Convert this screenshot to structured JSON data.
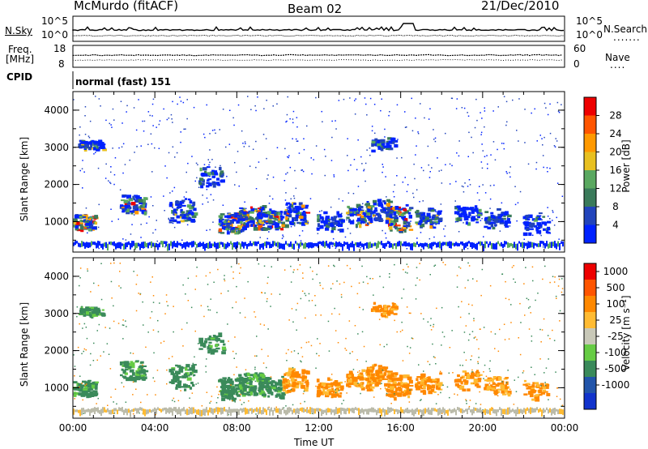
{
  "header": {
    "station": "McMurdo (fitACF)",
    "beam": "Beam 02",
    "date": "21/Dec/2010"
  },
  "noise_panel": {
    "left_label": "N.Sky",
    "right_label": "N.Search",
    "left_ticks": [
      "10^5",
      "10^0"
    ],
    "right_ticks": [
      "10^5",
      "10^0"
    ]
  },
  "freq_panel": {
    "left_label_1": "Freq.",
    "left_label_2": "[MHz]",
    "right_label": "Nave",
    "left_ticks": [
      "18",
      "8"
    ],
    "right_ticks": [
      "60",
      "0"
    ]
  },
  "cpid": {
    "label": "CPID",
    "value": "normal (fast) 151"
  },
  "colors": {
    "power_scale": [
      "#0022ff",
      "#2244bb",
      "#3a7a5a",
      "#5aa860",
      "#e8c020",
      "#ff9900",
      "#ff5500",
      "#ee0000"
    ],
    "velocity_scale": [
      "#ee0000",
      "#ff5500",
      "#ff8800",
      "#ffbb33",
      "#c8c8b8",
      "#66cc44",
      "#3a8a5a",
      "#2255aa",
      "#1133cc"
    ],
    "ground_scatter": "#bbbbaa"
  },
  "chart_data": [
    {
      "type": "heatmap",
      "title": "Power",
      "ylabel": "Slant Range [km]",
      "xlabel": "",
      "ylim": [
        180,
        4500
      ],
      "yticks": [
        "1000",
        "2000",
        "3000",
        "4000"
      ],
      "colorbar": {
        "label": "Power [dB]",
        "range": [
          0,
          32
        ],
        "ticks": [
          "4",
          "8",
          "12",
          "16",
          "20",
          "24",
          "28"
        ]
      }
    },
    {
      "type": "heatmap",
      "title": "Velocity",
      "ylabel": "Slant Range [km]",
      "xlabel": "Time UT",
      "ylim": [
        180,
        4500
      ],
      "yticks": [
        "1000",
        "2000",
        "3000",
        "4000"
      ],
      "xticks": [
        "00:00",
        "04:00",
        "08:00",
        "12:00",
        "16:00",
        "20:00",
        "00:00"
      ],
      "colorbar": {
        "label": "Velocity [m s⁻¹]",
        "ticks": [
          "1000",
          "500",
          "100",
          "25",
          "-25",
          "-100",
          "-500",
          "-1000"
        ]
      }
    }
  ]
}
